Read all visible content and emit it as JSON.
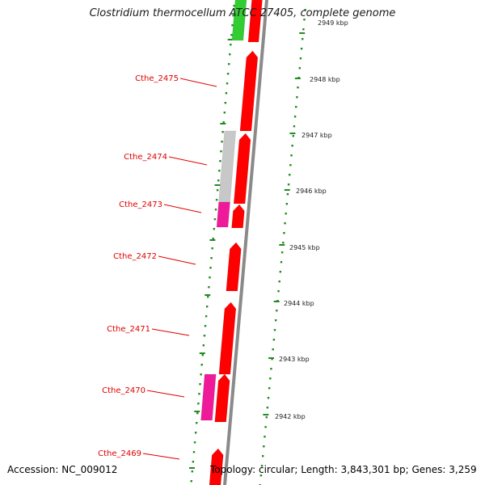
{
  "title": "Clostridium thermocellum ATCC 27405, complete genome",
  "accession_text": "Accession: NC_009012",
  "topology_text": "Topology: circular; Length: 3,843,301 bp; Genes: 3,259",
  "colors": {
    "cds": "#ff0000",
    "cds_highlight": "#ff2a2a",
    "pseudo": "#c8c8c8",
    "rna": "#ee1a99",
    "other": "#33cc33",
    "backbone": "#8a8a8a",
    "gc_dots": "#228b22",
    "label": "#e00000"
  },
  "gene_labels": [
    {
      "id": "Cthe_2475",
      "text": "Cthe_2475"
    },
    {
      "id": "Cthe_2474",
      "text": "Cthe_2474"
    },
    {
      "id": "Cthe_2473",
      "text": "Cthe_2473"
    },
    {
      "id": "Cthe_2472",
      "text": "Cthe_2472"
    },
    {
      "id": "Cthe_2471",
      "text": "Cthe_2471"
    },
    {
      "id": "Cthe_2470",
      "text": "Cthe_2470"
    },
    {
      "id": "Cthe_2469",
      "text": "Cthe_2469"
    }
  ],
  "scale_ticks": [
    {
      "kbp": 2949,
      "label": "2949 kbp"
    },
    {
      "kbp": 2948,
      "label": "2948 kbp"
    },
    {
      "kbp": 2947,
      "label": "2947 kbp"
    },
    {
      "kbp": 2946,
      "label": "2946 kbp"
    },
    {
      "kbp": 2945,
      "label": "2945 kbp"
    },
    {
      "kbp": 2944,
      "label": "2944 kbp"
    },
    {
      "kbp": 2943,
      "label": "2943 kbp"
    },
    {
      "kbp": 2942,
      "label": "2942 kbp"
    }
  ]
}
